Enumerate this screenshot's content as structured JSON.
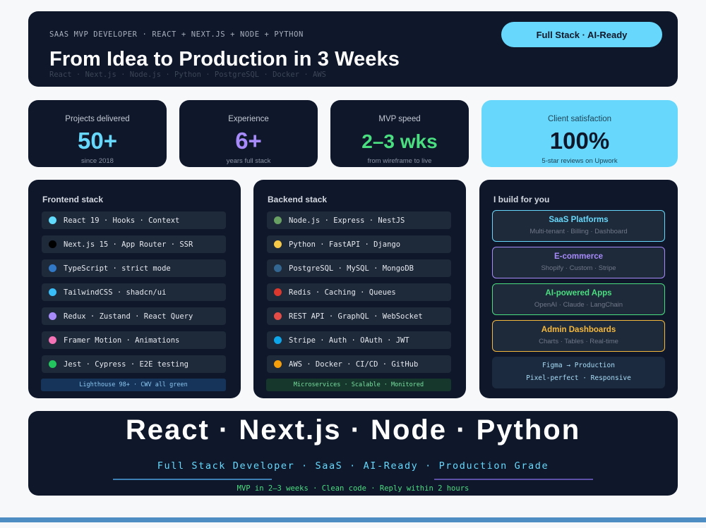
{
  "header": {
    "kicker": "SAAS MVP DEVELOPER · REACT + NEXT.JS + NODE + PYTHON",
    "title": "From Idea to Production in 3 Weeks",
    "sub": "React · Next.js · Node.js · Python · PostgreSQL · Docker · AWS",
    "pill": "Full Stack · AI-Ready"
  },
  "stats": [
    {
      "label": "Projects delivered",
      "value": "50+",
      "note": "since 2018"
    },
    {
      "label": "Experience",
      "value": "6+",
      "note": "years full stack"
    },
    {
      "label": "MVP speed",
      "value": "2–3 wks",
      "note": "from wireframe to live"
    },
    {
      "label": "Client satisfaction",
      "value": "100%",
      "note": "5-star reviews on Upwork"
    }
  ],
  "frontend": {
    "title": "Frontend stack",
    "items": [
      {
        "text": "React 19 · Hooks · Context",
        "color": "#61dafb"
      },
      {
        "text": "Next.js 15 · App Router · SSR",
        "color": "#000000"
      },
      {
        "text": "TypeScript · strict mode",
        "color": "#3178c6"
      },
      {
        "text": "TailwindCSS · shadcn/ui",
        "color": "#38bdf8"
      },
      {
        "text": "Redux · Zustand · React Query",
        "color": "#a78bfa"
      },
      {
        "text": "Framer Motion · Animations",
        "color": "#f472b6"
      },
      {
        "text": "Jest · Cypress · E2E testing",
        "color": "#22c55e"
      }
    ],
    "footer": "Lighthouse 98+ · CWV all green"
  },
  "backend": {
    "title": "Backend stack",
    "items": [
      {
        "text": "Node.js · Express · NestJS",
        "color": "#68a063"
      },
      {
        "text": "Python · FastAPI · Django",
        "color": "#f7c948"
      },
      {
        "text": "PostgreSQL · MySQL · MongoDB",
        "color": "#336791"
      },
      {
        "text": "Redis · Caching · Queues",
        "color": "#dc382d"
      },
      {
        "text": "REST API · GraphQL · WebSocket",
        "color": "#e34c47"
      },
      {
        "text": "Stripe · Auth · OAuth · JWT",
        "color": "#0ea5e9"
      },
      {
        "text": "AWS · Docker · CI/CD · GitHub",
        "color": "#f59e0b"
      }
    ],
    "footer": "Microservices · Scalable · Monitored"
  },
  "build": {
    "title": "I build for you",
    "items": [
      {
        "title": "SaaS Platforms",
        "sub": "Multi-tenant · Billing · Dashboard",
        "color": "#67d8fb"
      },
      {
        "title": "E-commerce",
        "sub": "Shopify · Custom · Stripe",
        "color": "#a78bfa"
      },
      {
        "title": "AI-powered Apps",
        "sub": "OpenAI · Claude · LangChain",
        "color": "#4ade80"
      },
      {
        "title": "Admin Dashboards",
        "sub": "Charts · Tables · Real-time",
        "color": "#f5b93d"
      }
    ],
    "figma_line1": "Figma → Production",
    "figma_line2": "Pixel-perfect · Responsive"
  },
  "footer": {
    "big": "React · Next.js · Node · Python",
    "tagline": "Full Stack Developer · SaaS · AI-Ready · Production Grade",
    "cta": "MVP in 2–3 weeks · Clean code · Reply within 2 hours"
  }
}
